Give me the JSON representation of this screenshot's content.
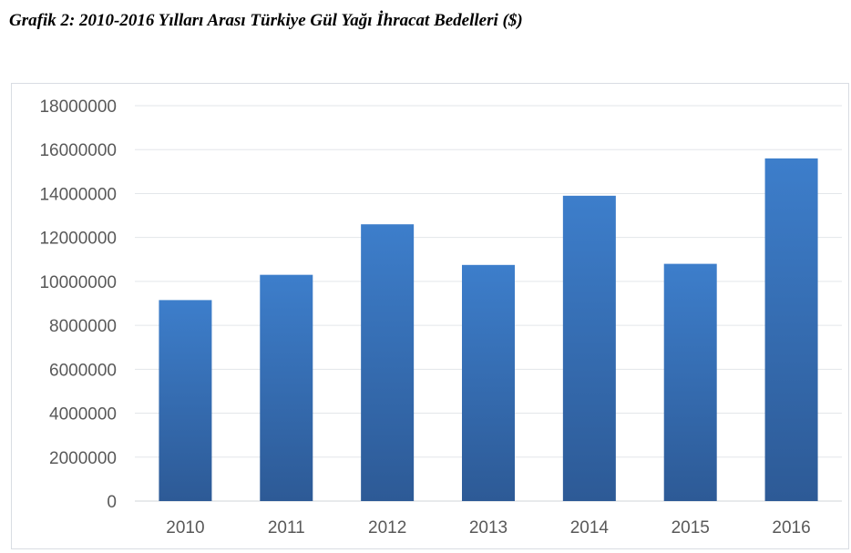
{
  "caption": "Grafik 2: 2010-2016 Yılları Arası Türkiye Gül Yağı İhracat Bedelleri ($)",
  "chart_data": {
    "type": "bar",
    "title": "",
    "xlabel": "",
    "ylabel": "",
    "categories": [
      "2010",
      "2011",
      "2012",
      "2013",
      "2014",
      "2015",
      "2016"
    ],
    "values": [
      9150000,
      10300000,
      12600000,
      10750000,
      13900000,
      10800000,
      15600000
    ],
    "ylim": [
      0,
      18000000
    ],
    "yticks": [
      0,
      2000000,
      4000000,
      6000000,
      8000000,
      10000000,
      12000000,
      14000000,
      16000000,
      18000000
    ],
    "ytick_labels": [
      "0",
      "2000000",
      "4000000",
      "6000000",
      "8000000",
      "10000000",
      "12000000",
      "14000000",
      "16000000",
      "18000000"
    ],
    "grid": true,
    "legend": "none",
    "bar_color_top": "#3d7ecb",
    "bar_color_bottom": "#2d5a96",
    "grid_color": "#e3e6ea"
  }
}
